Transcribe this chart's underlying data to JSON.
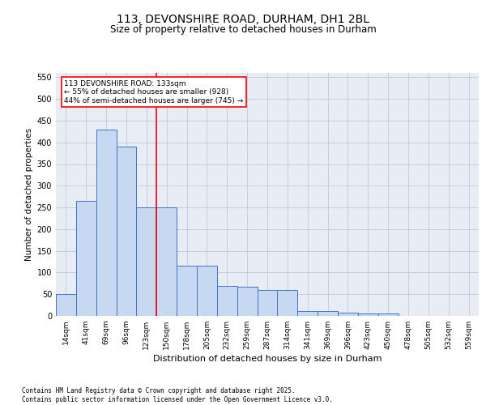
{
  "title1": "113, DEVONSHIRE ROAD, DURHAM, DH1 2BL",
  "title2": "Size of property relative to detached houses in Durham",
  "xlabel": "Distribution of detached houses by size in Durham",
  "ylabel": "Number of detached properties",
  "categories": [
    "14sqm",
    "41sqm",
    "69sqm",
    "96sqm",
    "123sqm",
    "150sqm",
    "178sqm",
    "205sqm",
    "232sqm",
    "259sqm",
    "287sqm",
    "314sqm",
    "341sqm",
    "369sqm",
    "396sqm",
    "423sqm",
    "450sqm",
    "478sqm",
    "505sqm",
    "532sqm",
    "559sqm"
  ],
  "values": [
    50,
    265,
    430,
    390,
    250,
    250,
    115,
    115,
    70,
    68,
    60,
    60,
    12,
    12,
    8,
    6,
    6,
    0,
    0,
    0,
    0
  ],
  "bar_color": "#c6d9f0",
  "bar_edge_color": "#4472c4",
  "grid_color": "#c0c8d8",
  "background_color": "#e8ecf5",
  "red_line_x": 4.5,
  "annotation_text": "113 DEVONSHIRE ROAD: 133sqm\n← 55% of detached houses are smaller (928)\n44% of semi-detached houses are larger (745) →",
  "footer1": "Contains HM Land Registry data © Crown copyright and database right 2025.",
  "footer2": "Contains public sector information licensed under the Open Government Licence v3.0.",
  "ylim": [
    0,
    560
  ],
  "yticks": [
    0,
    50,
    100,
    150,
    200,
    250,
    300,
    350,
    400,
    450,
    500,
    550
  ]
}
